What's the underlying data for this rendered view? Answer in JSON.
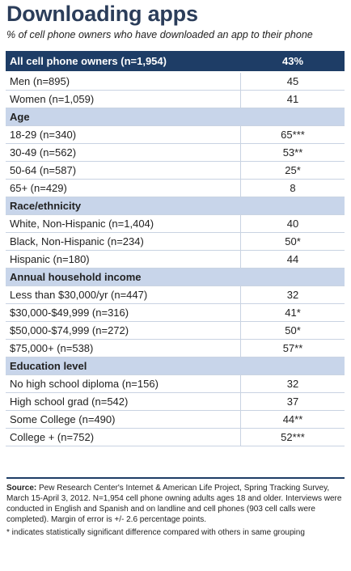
{
  "title": "Downloading apps",
  "subtitle": "% of cell phone owners who have downloaded an app to their phone",
  "chart_data": {
    "type": "table",
    "title": "Downloading apps",
    "subtitle": "% of cell phone owners who have downloaded an app to their phone",
    "rows": [
      {
        "kind": "total",
        "label": "All cell phone owners (n=1,954)",
        "value": "43%"
      },
      {
        "kind": "row",
        "label": "Men (n=895)",
        "value": "45"
      },
      {
        "kind": "row",
        "label": "Women (n=1,059)",
        "value": "41"
      },
      {
        "kind": "header",
        "label": "Age",
        "value": ""
      },
      {
        "kind": "row",
        "label": "18-29 (n=340)",
        "value": "65***"
      },
      {
        "kind": "row",
        "label": "30-49 (n=562)",
        "value": "53**"
      },
      {
        "kind": "row",
        "label": "50-64 (n=587)",
        "value": "25*"
      },
      {
        "kind": "row",
        "label": "65+ (n=429)",
        "value": "8"
      },
      {
        "kind": "header",
        "label": "Race/ethnicity",
        "value": ""
      },
      {
        "kind": "row",
        "label": "White, Non-Hispanic (n=1,404)",
        "value": "40"
      },
      {
        "kind": "row",
        "label": "Black, Non-Hispanic (n=234)",
        "value": "50*"
      },
      {
        "kind": "row",
        "label": "Hispanic (n=180)",
        "value": "44"
      },
      {
        "kind": "header",
        "label": "Annual household income",
        "value": ""
      },
      {
        "kind": "row",
        "label": "Less than $30,000/yr (n=447)",
        "value": "32"
      },
      {
        "kind": "row",
        "label": "$30,000-$49,999 (n=316)",
        "value": "41*"
      },
      {
        "kind": "row",
        "label": "$50,000-$74,999 (n=272)",
        "value": "50*"
      },
      {
        "kind": "row",
        "label": "$75,000+ (n=538)",
        "value": "57**"
      },
      {
        "kind": "header",
        "label": "Education level",
        "value": ""
      },
      {
        "kind": "row",
        "label": "No high school diploma (n=156)",
        "value": "32"
      },
      {
        "kind": "row",
        "label": "High school grad (n=542)",
        "value": "37"
      },
      {
        "kind": "row",
        "label": "Some College (n=490)",
        "value": "44**"
      },
      {
        "kind": "row",
        "label": "College + (n=752)",
        "value": "52***"
      }
    ]
  },
  "footer": {
    "source_label": "Source:",
    "source_text": "Pew Research Center's Internet & American Life Project, Spring Tracking Survey, March 15-April 3, 2012. N=1,954 cell phone owning adults ages 18 and older. Interviews were conducted in English and Spanish and on landline and cell phones (903 cell calls were completed). Margin of error is +/- 2.6 percentage points.",
    "note": "* indicates statistically significant difference compared with others in same grouping"
  },
  "colors": {
    "title": "#2b3d5a",
    "total_row_bg": "#1e3d66",
    "section_header_bg": "#c8d5ea",
    "grid_line": "#c9d3e2"
  }
}
